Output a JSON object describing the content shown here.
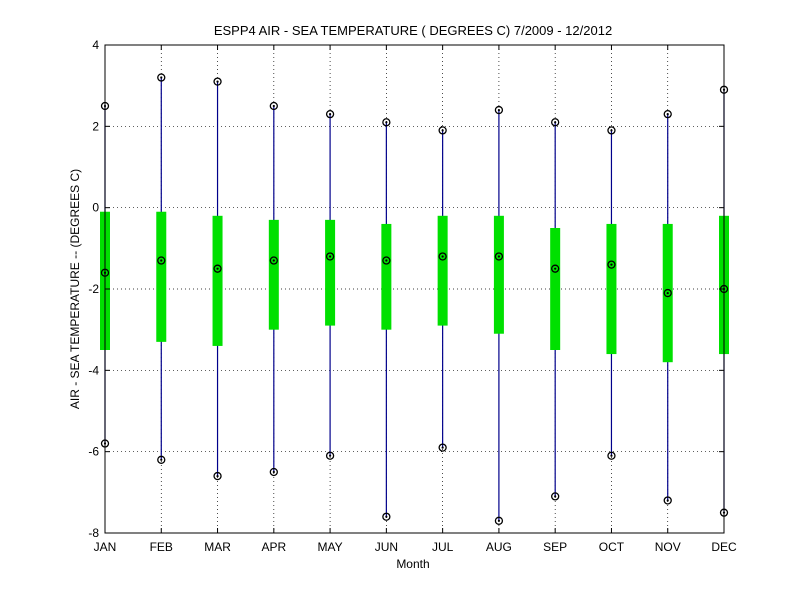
{
  "chart_data": {
    "type": "boxplot",
    "title": "ESPP4  AIR - SEA TEMPERATURE ( DEGREES C) 7/2009 - 12/2012",
    "xlabel": "Month",
    "ylabel": "AIR - SEA TEMPERATURE -- (DEGREES C)",
    "categories": [
      "JAN",
      "FEB",
      "MAR",
      "APR",
      "MAY",
      "JUN",
      "JUL",
      "AUG",
      "SEP",
      "OCT",
      "NOV",
      "DEC"
    ],
    "ylim": [
      -8,
      4
    ],
    "yticks": [
      -8,
      -6,
      -4,
      -2,
      0,
      2,
      4
    ],
    "grid": true,
    "series": [
      {
        "values": {
          "min": [
            -5.8,
            -6.2,
            -6.6,
            -6.5,
            -6.1,
            -7.6,
            -5.9,
            -7.7,
            -7.1,
            -6.1,
            -7.2,
            -7.5
          ],
          "q1": [
            -3.5,
            -3.3,
            -3.4,
            -3.0,
            -2.9,
            -3.0,
            -2.9,
            -3.1,
            -3.5,
            -3.6,
            -3.8,
            -3.6
          ],
          "median": [
            -1.6,
            -1.3,
            -1.5,
            -1.3,
            -1.2,
            -1.3,
            -1.2,
            -1.2,
            -1.5,
            -1.4,
            -2.1,
            -2.0
          ],
          "q3": [
            -0.1,
            -0.1,
            -0.2,
            -0.3,
            -0.3,
            -0.4,
            -0.2,
            -0.2,
            -0.5,
            -0.4,
            -0.4,
            -0.2
          ],
          "max": [
            2.5,
            3.2,
            3.1,
            2.5,
            2.3,
            2.1,
            1.9,
            2.4,
            2.1,
            1.9,
            2.3,
            2.9
          ]
        }
      }
    ],
    "colors": {
      "whisker": "#00008b",
      "box": "#00e000",
      "marker": "#000000",
      "grid": "#000000"
    }
  }
}
